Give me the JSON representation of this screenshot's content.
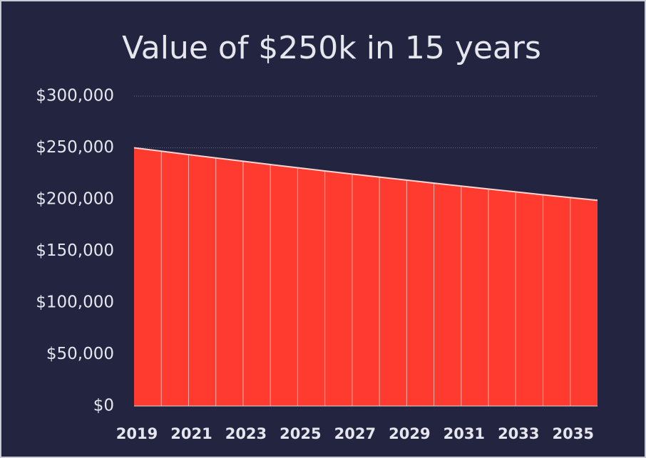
{
  "chart_data": {
    "type": "area",
    "title": "Value of $250k in 15 years",
    "categories": [
      "2019",
      null,
      "2021",
      null,
      "2023",
      null,
      "2025",
      null,
      "2027",
      null,
      "2029",
      null,
      "2031",
      null,
      "2033",
      null,
      "2035",
      null
    ],
    "values": [
      250000,
      246700,
      243400,
      240200,
      237000,
      233800,
      230700,
      227600,
      224600,
      221600,
      218700,
      215800,
      212900,
      210100,
      207300,
      204500,
      201800,
      199100
    ],
    "color": "#ff3a2f",
    "ylim": [
      0,
      300000
    ],
    "yticks": [
      {
        "value": 0,
        "label": "$0"
      },
      {
        "value": 50000,
        "label": "$50,000"
      },
      {
        "value": 100000,
        "label": "$100,000"
      },
      {
        "value": 150000,
        "label": "$150,000"
      },
      {
        "value": 200000,
        "label": "$200,000"
      },
      {
        "value": 250000,
        "label": "$250,000"
      },
      {
        "value": 300000,
        "label": "$300,000"
      }
    ],
    "grid": true
  }
}
